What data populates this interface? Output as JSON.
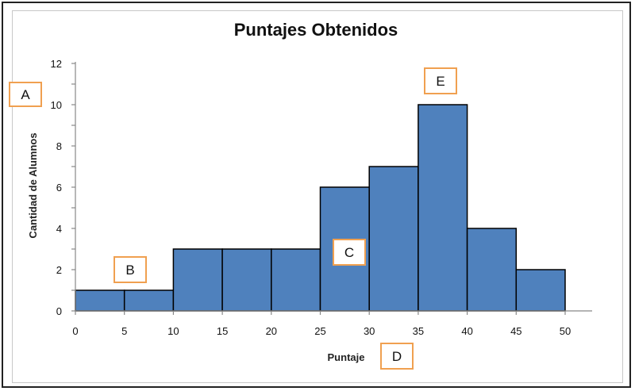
{
  "chart_data": {
    "type": "bar",
    "title": "Puntajes Obtenidos",
    "xlabel": "Puntaje",
    "ylabel": "Cantidad de Alumnos",
    "bins": [
      {
        "from": 0,
        "to": 5,
        "value": 1
      },
      {
        "from": 5,
        "to": 10,
        "value": 1
      },
      {
        "from": 10,
        "to": 15,
        "value": 3
      },
      {
        "from": 15,
        "to": 20,
        "value": 3
      },
      {
        "from": 20,
        "to": 25,
        "value": 3
      },
      {
        "from": 25,
        "to": 30,
        "value": 6
      },
      {
        "from": 30,
        "to": 35,
        "value": 7
      },
      {
        "from": 35,
        "to": 40,
        "value": 10
      },
      {
        "from": 40,
        "to": 45,
        "value": 4
      },
      {
        "from": 45,
        "to": 50,
        "value": 2
      }
    ],
    "x_ticks": [
      "0",
      "5",
      "10",
      "15",
      "20",
      "25",
      "30",
      "35",
      "40",
      "45",
      "50"
    ],
    "y_ticks": [
      "0",
      "2",
      "4",
      "6",
      "8",
      "10",
      "12"
    ],
    "xlim": [
      0,
      50
    ],
    "ylim": [
      0,
      12
    ],
    "bar_color": "#4f81bd",
    "bar_edge_color": "#000000",
    "grid": false,
    "legend": "none"
  },
  "callouts": [
    {
      "id": "A",
      "label": "A"
    },
    {
      "id": "B",
      "label": "B"
    },
    {
      "id": "C",
      "label": "C"
    },
    {
      "id": "D",
      "label": "D"
    },
    {
      "id": "E",
      "label": "E"
    }
  ]
}
